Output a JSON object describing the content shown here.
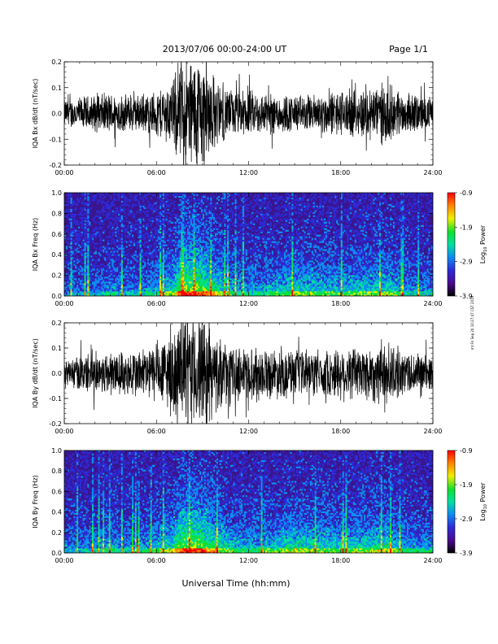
{
  "header": {
    "title": "2013/07/06  00:00-24:00 UT",
    "page": "Page 1/1"
  },
  "footer": {
    "xlabel": "Universal Time (hh:mm)",
    "side_note": "mt Fri Sep 20 10:27:47 CST 2019"
  },
  "colors": {
    "trace": "#000000",
    "spectro_background": "#3a1590",
    "colorbar": [
      "#000000",
      "#4b0a8c",
      "#2d2bd8",
      "#0c8ff0",
      "#00e0a0",
      "#10e030",
      "#f0f000",
      "#ff8000",
      "#ff0000"
    ]
  },
  "chart_data": [
    {
      "type": "line",
      "name": "iqa-bx",
      "ylabel": "IQA Bx dB/dt (nT/sec)",
      "ylim": [
        -0.2,
        0.2
      ],
      "yticks": [
        "0.2",
        "0.1",
        "0.0",
        "-0.1",
        "-0.2"
      ],
      "yvals": [
        0.2,
        0.1,
        0.0,
        -0.1,
        -0.2
      ],
      "xticks": [
        "00:00",
        "06:00",
        "12:00",
        "18:00",
        "24:00"
      ],
      "xlim": [
        0,
        24
      ],
      "envelope": {
        "hours": [
          0,
          1,
          2,
          3,
          4,
          5,
          6,
          7,
          7.5,
          8,
          9,
          9.5,
          10,
          11,
          12,
          13,
          14,
          15,
          16,
          17,
          18,
          19,
          20,
          21,
          22,
          23,
          24
        ],
        "amplitude": [
          0.06,
          0.07,
          0.08,
          0.09,
          0.08,
          0.08,
          0.1,
          0.14,
          0.22,
          0.25,
          0.25,
          0.2,
          0.13,
          0.1,
          0.1,
          0.09,
          0.09,
          0.08,
          0.08,
          0.09,
          0.1,
          0.1,
          0.12,
          0.13,
          0.09,
          0.08,
          0.07
        ]
      }
    },
    {
      "type": "heatmap",
      "name": "iqa-bx-spectrogram",
      "ylabel": "IQA Bx Freq (Hz)",
      "ylim": [
        0,
        1.0
      ],
      "yticks": [
        "1.0",
        "0.8",
        "0.6",
        "0.4",
        "0.2",
        "0.0"
      ],
      "yvals": [
        1.0,
        0.8,
        0.6,
        0.4,
        0.2,
        0.0
      ],
      "xticks": [
        "00:00",
        "06:00",
        "12:00",
        "18:00",
        "24:00"
      ],
      "xlim": [
        0,
        24
      ],
      "colorbar": {
        "label": "Log",
        "label_sub": "10",
        "label_tail": " Power",
        "ticks": [
          "-0.9",
          "-1.9",
          "-2.9",
          "-3.9"
        ],
        "tick_values": [
          -0.9,
          -1.9,
          -2.9,
          -3.9
        ],
        "range": [
          -3.9,
          -0.9
        ]
      },
      "activity": {
        "hours": [
          0,
          2,
          3,
          4,
          5,
          6,
          7,
          7.5,
          8,
          9,
          10,
          11,
          12,
          14,
          15,
          16,
          18,
          20,
          21,
          22,
          24
        ],
        "intensity": [
          0.25,
          0.3,
          0.4,
          0.3,
          0.35,
          0.45,
          0.6,
          0.85,
          0.95,
          0.9,
          0.65,
          0.45,
          0.4,
          0.5,
          0.6,
          0.55,
          0.5,
          0.55,
          0.6,
          0.4,
          0.35
        ]
      }
    },
    {
      "type": "line",
      "name": "iqa-by",
      "ylabel": "IQA By dB/dt (nT/sec)",
      "ylim": [
        -0.2,
        0.2
      ],
      "yticks": [
        "0.2",
        "0.1",
        "0.0",
        "-0.1",
        "-0.2"
      ],
      "yvals": [
        0.2,
        0.1,
        0.0,
        -0.1,
        -0.2
      ],
      "xticks": [
        "00:00",
        "06:00",
        "12:00",
        "18:00",
        "24:00"
      ],
      "xlim": [
        0,
        24
      ],
      "envelope": {
        "hours": [
          0,
          1,
          2,
          3,
          4,
          5,
          6,
          7,
          7.5,
          8,
          9,
          9.5,
          10,
          11,
          12,
          13,
          14,
          15,
          16,
          17,
          18,
          19,
          20,
          21,
          22,
          23,
          24
        ],
        "amplitude": [
          0.06,
          0.08,
          0.09,
          0.1,
          0.1,
          0.11,
          0.13,
          0.18,
          0.23,
          0.25,
          0.25,
          0.22,
          0.15,
          0.12,
          0.12,
          0.11,
          0.11,
          0.1,
          0.1,
          0.1,
          0.12,
          0.12,
          0.13,
          0.14,
          0.1,
          0.09,
          0.08
        ]
      }
    },
    {
      "type": "heatmap",
      "name": "iqa-by-spectrogram",
      "ylabel": "IQA By Freq (Hz)",
      "ylim": [
        0,
        1.0
      ],
      "yticks": [
        "1.0",
        "0.8",
        "0.6",
        "0.4",
        "0.2",
        "0.0"
      ],
      "yvals": [
        1.0,
        0.8,
        0.6,
        0.4,
        0.2,
        0.0
      ],
      "xticks": [
        "00:00",
        "06:00",
        "12:00",
        "18:00",
        "24:00"
      ],
      "xlim": [
        0,
        24
      ],
      "colorbar": {
        "label": "Log",
        "label_sub": "10",
        "label_tail": " Power",
        "ticks": [
          "-0.9",
          "-1.9",
          "-2.9",
          "-3.9"
        ],
        "tick_values": [
          -0.9,
          -1.9,
          -2.9,
          -3.9
        ],
        "range": [
          -3.9,
          -0.9
        ]
      },
      "activity": {
        "hours": [
          0,
          2,
          3,
          4,
          5,
          6,
          7,
          7.5,
          8,
          9,
          10,
          11,
          12,
          14,
          15,
          16,
          18,
          20,
          21,
          22,
          24
        ],
        "intensity": [
          0.3,
          0.35,
          0.45,
          0.35,
          0.4,
          0.5,
          0.65,
          0.85,
          0.95,
          0.9,
          0.7,
          0.5,
          0.45,
          0.55,
          0.65,
          0.6,
          0.55,
          0.6,
          0.65,
          0.45,
          0.4
        ]
      }
    }
  ]
}
